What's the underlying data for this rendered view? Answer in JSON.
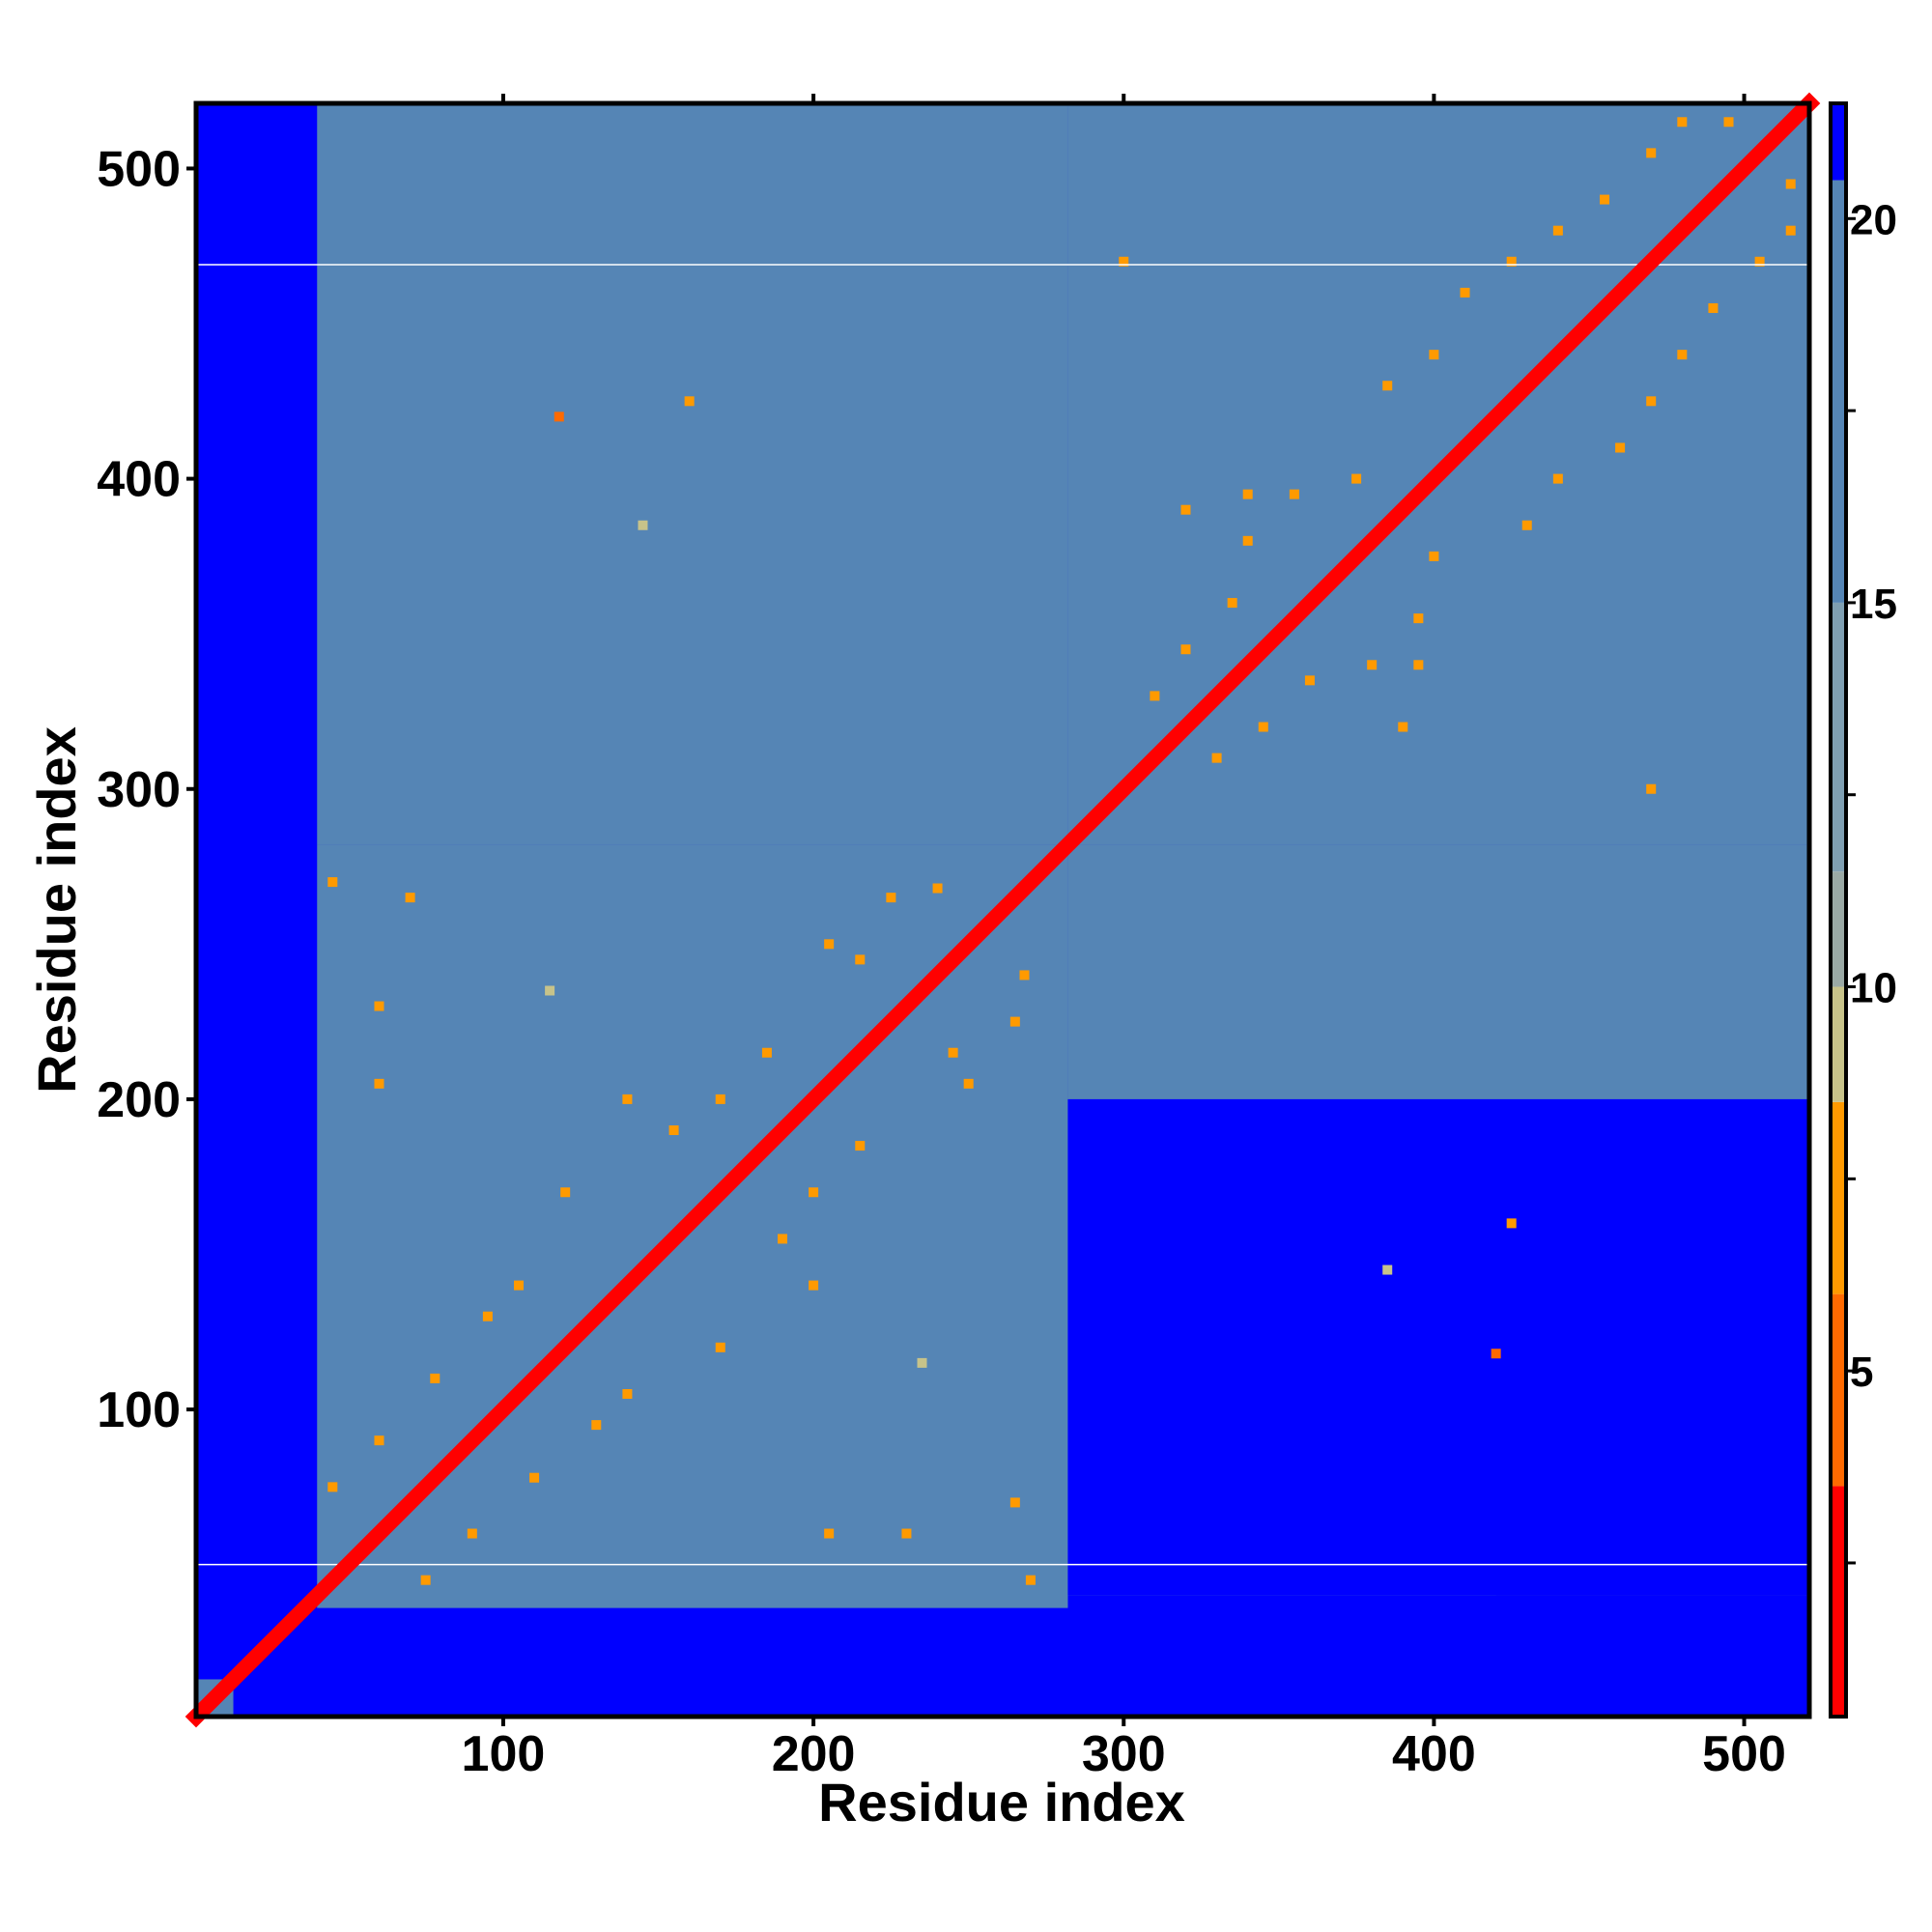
{
  "chart_data": {
    "type": "heatmap",
    "title": "",
    "xlabel": "Residue index",
    "ylabel": "Residue index",
    "xlim": [
      1,
      521
    ],
    "ylim": [
      1,
      521
    ],
    "x_ticks": [
      100,
      200,
      300,
      400,
      500
    ],
    "y_ticks": [
      100,
      200,
      300,
      400,
      500
    ],
    "colorbar": {
      "min": 0.5,
      "max": 21.5,
      "ticks": [
        5,
        10,
        15,
        20
      ],
      "colors": [
        {
          "from": 0.5,
          "to": 3.5,
          "color": "#ff0000"
        },
        {
          "from": 3.5,
          "to": 6.0,
          "color": "#ff6a00"
        },
        {
          "from": 6.0,
          "to": 8.5,
          "color": "#ff9a00"
        },
        {
          "from": 8.5,
          "to": 10.0,
          "color": "#c7c38a"
        },
        {
          "from": 10.0,
          "to": 11.5,
          "color": "#9aa9a5"
        },
        {
          "from": 11.5,
          "to": 15.0,
          "color": "#7f9fb2"
        },
        {
          "from": 15.0,
          "to": 20.5,
          "color": "#5585b5"
        },
        {
          "from": 20.5,
          "to": 21.5,
          "color": "#0000ff"
        }
      ]
    },
    "regions": [
      {
        "x": [
          1,
          13
        ],
        "y": [
          1,
          13
        ],
        "value": 15
      },
      {
        "x": [
          40,
          282
        ],
        "y": [
          36,
          282
        ],
        "value": 17
      },
      {
        "x": [
          282,
          521
        ],
        "y": [
          282,
          521
        ],
        "value": 17
      },
      {
        "x": [
          40,
          282
        ],
        "y": [
          282,
          521
        ],
        "value": 19
      },
      {
        "x": [
          282,
          521
        ],
        "y": [
          40,
          282
        ],
        "value": 19
      },
      {
        "x": [
          282,
          521
        ],
        "y": [
          40,
          200
        ],
        "value": 21
      },
      {
        "x": [
          420,
          521
        ],
        "y": [
          40,
          140
        ],
        "value": 21
      }
    ],
    "contacts": [
      {
        "i": 45,
        "j": 75,
        "value": 8
      },
      {
        "i": 60,
        "j": 90,
        "value": 8
      },
      {
        "i": 78,
        "j": 110,
        "value": 7
      },
      {
        "i": 95,
        "j": 130,
        "value": 8
      },
      {
        "i": 105,
        "j": 140,
        "value": 7
      },
      {
        "i": 120,
        "j": 170,
        "value": 8
      },
      {
        "i": 140,
        "j": 200,
        "value": 7
      },
      {
        "i": 155,
        "j": 190,
        "value": 8
      },
      {
        "i": 170,
        "j": 200,
        "value": 8
      },
      {
        "i": 185,
        "j": 215,
        "value": 7
      },
      {
        "i": 205,
        "j": 250,
        "value": 7
      },
      {
        "i": 215,
        "j": 245,
        "value": 8
      },
      {
        "i": 225,
        "j": 265,
        "value": 7
      },
      {
        "i": 240,
        "j": 268,
        "value": 8
      },
      {
        "i": 60,
        "j": 230,
        "value": 8
      },
      {
        "i": 70,
        "j": 265,
        "value": 8
      },
      {
        "i": 115,
        "j": 235,
        "value": 9
      },
      {
        "i": 205,
        "j": 60,
        "value": 8
      },
      {
        "i": 270,
        "j": 45,
        "value": 8
      },
      {
        "i": 310,
        "j": 330,
        "value": 8
      },
      {
        "i": 320,
        "j": 345,
        "value": 7
      },
      {
        "i": 335,
        "j": 360,
        "value": 8
      },
      {
        "i": 340,
        "j": 380,
        "value": 7
      },
      {
        "i": 355,
        "j": 395,
        "value": 8
      },
      {
        "i": 375,
        "j": 400,
        "value": 7
      },
      {
        "i": 385,
        "j": 430,
        "value": 8
      },
      {
        "i": 400,
        "j": 440,
        "value": 7
      },
      {
        "i": 410,
        "j": 460,
        "value": 8
      },
      {
        "i": 425,
        "j": 470,
        "value": 7
      },
      {
        "i": 440,
        "j": 480,
        "value": 8
      },
      {
        "i": 455,
        "j": 490,
        "value": 7
      },
      {
        "i": 470,
        "j": 505,
        "value": 8
      },
      {
        "i": 480,
        "j": 515,
        "value": 7
      },
      {
        "i": 495,
        "j": 515,
        "value": 8
      },
      {
        "i": 300,
        "j": 470,
        "value": 8
      },
      {
        "i": 390,
        "j": 320,
        "value": 7
      },
      {
        "i": 395,
        "j": 340,
        "value": 8
      },
      {
        "i": 420,
        "j": 118,
        "value": 5
      },
      {
        "i": 425,
        "j": 160,
        "value": 8
      },
      {
        "i": 385,
        "j": 145,
        "value": 9
      }
    ],
    "lines": [
      {
        "y": 50,
        "color": "#ffffff"
      },
      {
        "y": 469,
        "color": "#ffffff"
      }
    ]
  }
}
